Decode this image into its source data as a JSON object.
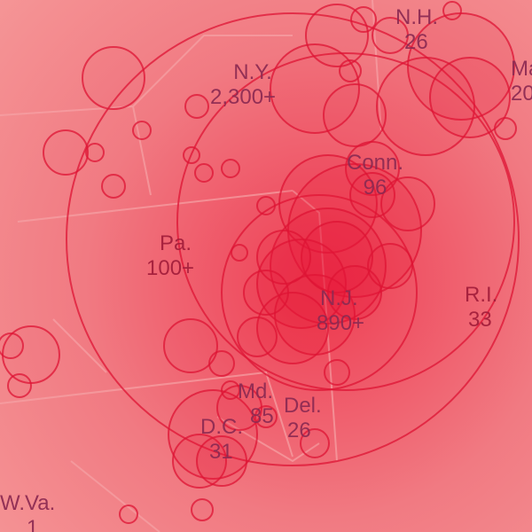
{
  "map": {
    "colors": {
      "background": "#f0757d",
      "circle_stroke": "#dd1434",
      "circle_fill": "#e8193a",
      "border": "#f6a3a6",
      "label": "#a21d3a"
    },
    "states": [
      {
        "id": "ny",
        "name": "N.Y.",
        "count": "2,300+"
      },
      {
        "id": "nh",
        "name": "N.H.",
        "count": "26"
      },
      {
        "id": "ma",
        "name": "Ma",
        "count": "20"
      },
      {
        "id": "conn",
        "name": "Conn.",
        "count": "96"
      },
      {
        "id": "pa",
        "name": "Pa.",
        "count": "100+"
      },
      {
        "id": "ri",
        "name": "R.I.",
        "count": "33"
      },
      {
        "id": "nj",
        "name": "N.J.",
        "count": "890+"
      },
      {
        "id": "md",
        "name": "Md.",
        "count": "85"
      },
      {
        "id": "del",
        "name": "Del.",
        "count": "26"
      },
      {
        "id": "dc",
        "name": "D.C.",
        "count": "31"
      },
      {
        "id": "wva",
        "name": "W.Va.",
        "count": "1"
      }
    ]
  }
}
